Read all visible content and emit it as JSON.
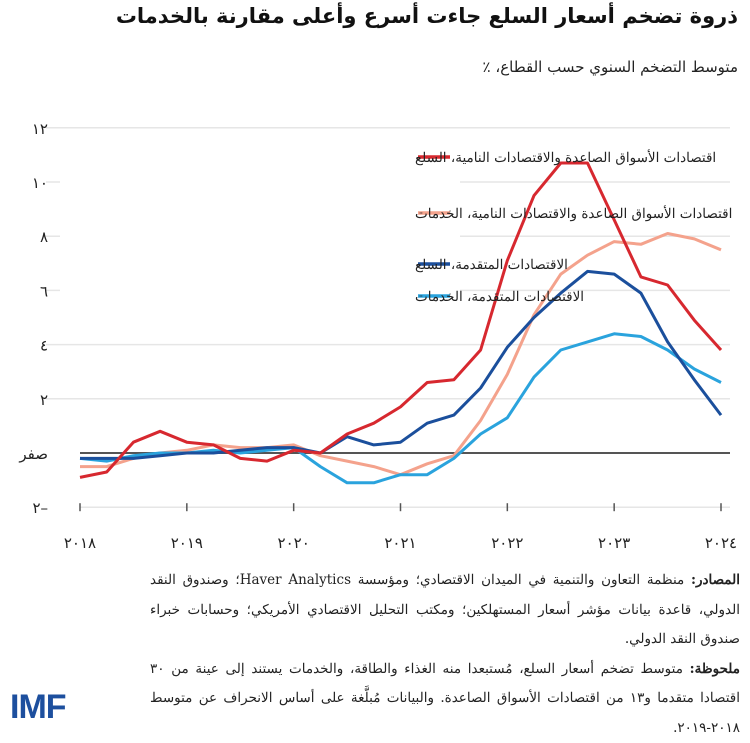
{
  "title": "ذروة تضخم أسعار السلع جاءت أسرع وأعلى مقارنة بالخدمات",
  "subtitle": "متوسط التضخم السنوي حسب القطاع، ٪",
  "chart_data": {
    "type": "line",
    "ylim": [
      -2,
      12
    ],
    "yticks": [
      {
        "v": 12,
        "label": "١٢"
      },
      {
        "v": 10,
        "label": "١٠"
      },
      {
        "v": 8,
        "label": "٨"
      },
      {
        "v": 6,
        "label": "٦"
      },
      {
        "v": 4,
        "label": "٤"
      },
      {
        "v": 2,
        "label": "٢"
      },
      {
        "v": 0,
        "label": "صفر"
      },
      {
        "v": -2,
        "label": "٢–"
      }
    ],
    "xticks": [
      {
        "v": 2018,
        "label": "٢٠١٨"
      },
      {
        "v": 2019,
        "label": "٢٠١٩"
      },
      {
        "v": 2020,
        "label": "٢٠٢٠"
      },
      {
        "v": 2021,
        "label": "٢٠٢١"
      },
      {
        "v": 2022,
        "label": "٢٠٢٢"
      },
      {
        "v": 2023,
        "label": "٢٠٢٣"
      },
      {
        "v": 2024,
        "label": "٢٠٢٤"
      }
    ],
    "x_frequency": "quarterly",
    "x": [
      "2018Q1",
      "2018Q2",
      "2018Q3",
      "2018Q4",
      "2019Q1",
      "2019Q2",
      "2019Q3",
      "2019Q4",
      "2020Q1",
      "2020Q2",
      "2020Q3",
      "2020Q4",
      "2021Q1",
      "2021Q2",
      "2021Q3",
      "2021Q4",
      "2022Q1",
      "2022Q2",
      "2022Q3",
      "2022Q4",
      "2023Q1",
      "2023Q2",
      "2023Q3",
      "2023Q4",
      "2024Q1"
    ],
    "grid": true,
    "legend_placement": "top-left",
    "series": [
      {
        "name": "اقتصادات الأسواق الصاعدة والاقتصادات النامية، السلع",
        "color": "#d7282f",
        "values": [
          -0.9,
          -0.7,
          0.4,
          0.8,
          0.4,
          0.3,
          -0.2,
          -0.3,
          0.1,
          0,
          0.7,
          1.1,
          1.7,
          2.6,
          2.7,
          3.8,
          7.1,
          9.5,
          10.7,
          10.7,
          8.6,
          6.5,
          6.2,
          4.9,
          3.8
        ]
      },
      {
        "name": "اقتصادات الأسواق الصاعدة والاقتصادات النامية، الخدمات",
        "color": "#f4a28c",
        "values": [
          -0.5,
          -0.5,
          -0.2,
          0,
          0.1,
          0.3,
          0.2,
          0.2,
          0.3,
          -0.1,
          -0.3,
          -0.5,
          -0.8,
          -0.4,
          -0.1,
          1.2,
          2.9,
          5.1,
          6.6,
          7.3,
          7.8,
          7.7,
          8.1,
          7.9,
          7.5
        ]
      },
      {
        "name": "الاقتصادات المتقدمة، السلع",
        "color": "#1b4f9c",
        "values": [
          -0.2,
          -0.2,
          -0.2,
          -0.1,
          0,
          0,
          0.1,
          0.2,
          0.2,
          0,
          0.6,
          0.3,
          0.4,
          1.1,
          1.4,
          2.4,
          3.9,
          5.0,
          5.9,
          6.7,
          6.6,
          5.9,
          4.1,
          2.7,
          1.4
        ]
      },
      {
        "name": "الاقتصادات المتقدمة، الخدمات",
        "color": "#2aa3dd",
        "values": [
          -0.2,
          -0.3,
          -0.1,
          0,
          0,
          0.1,
          0,
          0.1,
          0.2,
          -0.5,
          -1.1,
          -1.1,
          -0.8,
          -0.8,
          -0.2,
          0.7,
          1.3,
          2.8,
          3.8,
          4.1,
          4.4,
          4.3,
          3.8,
          3.1,
          2.6
        ]
      }
    ]
  },
  "notes": {
    "sources_label": "المصادر:",
    "sources": " منظمة التعاون والتنمية في الميدان الاقتصادي؛ ومؤسسة Haver Analytics؛ وصندوق النقد الدولي، قاعدة بيانات مؤشر أسعار المستهلكين؛ ومكتب التحليل الاقتصادي الأمريكي؛ وحسابات خبراء صندوق النقد الدولي.",
    "note_label": "ملحوظة:",
    "note": " متوسط تضخم أسعار السلع، مُستبعدا منه الغذاء والطاقة، والخدمات يستند إلى عينة من ٣٠ اقتصادا متقدما و١٣ من اقتصادات الأسواق الصاعدة. والبيانات مُبلَّغة على أساس الانحراف عن متوسط ٢٠١٨-٢٠١٩."
  },
  "logo": "IMF"
}
